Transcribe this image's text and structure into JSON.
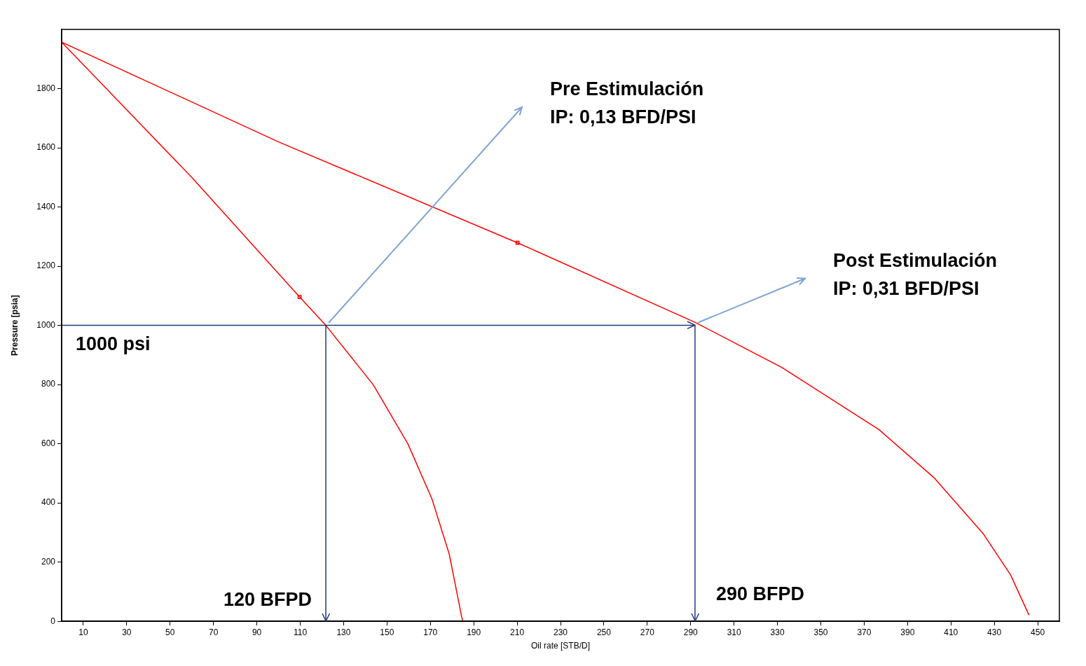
{
  "chart_data": {
    "type": "line",
    "xlabel": "Oil rate [STB/D]",
    "ylabel": "Pressure [psia]",
    "xlim": [
      0,
      460
    ],
    "ylim": [
      0,
      2000
    ],
    "xticks": [
      10,
      30,
      50,
      70,
      90,
      110,
      130,
      150,
      170,
      190,
      210,
      230,
      250,
      270,
      290,
      310,
      330,
      350,
      370,
      390,
      410,
      430,
      450
    ],
    "yticks": [
      0,
      200,
      400,
      600,
      800,
      1000,
      1200,
      1400,
      1600,
      1800
    ],
    "grid": false,
    "legend": false,
    "marker": "none",
    "line_style": "solid",
    "series": [
      {
        "color": "#ff0000",
        "x": [
          0,
          60,
          109.7,
          121.8,
          143.6,
          159.6,
          170.7,
          178.7,
          184.4,
          185
        ],
        "values": [
          1957,
          1500,
          1096,
          1000,
          800,
          600,
          414,
          227,
          16,
          0
        ]
      },
      {
        "color": "#ff0000",
        "x": [
          0,
          100,
          210.2,
          292.1,
          332,
          376.8,
          402.4,
          424.8,
          437.5,
          446
        ],
        "values": [
          1957,
          1620,
          1279,
          1010,
          858,
          648,
          484,
          297,
          157,
          21
        ]
      },
      {
        "type": "scatter",
        "marker": "square",
        "color": "#ff0000",
        "x": [
          109.7,
          210.2
        ],
        "values": [
          1096,
          1279
        ]
      }
    ],
    "annotations": [
      "Pre Estimulación\nIP: 0,13 BFD/PSI",
      "Post Estimulación\nIP: 0,31 BFD/PSI"
    ],
    "ref_lines": [
      {
        "axis": "y",
        "value": 1000,
        "label": "1000 psi",
        "color": "#1f3a7a"
      },
      {
        "axis": "x",
        "value": 121.8,
        "label": "120 BFPD",
        "color": "#1f3a7a"
      },
      {
        "axis": "x",
        "value": 292,
        "label": "290 BFPD",
        "color": "#1f3a7a"
      }
    ]
  }
}
